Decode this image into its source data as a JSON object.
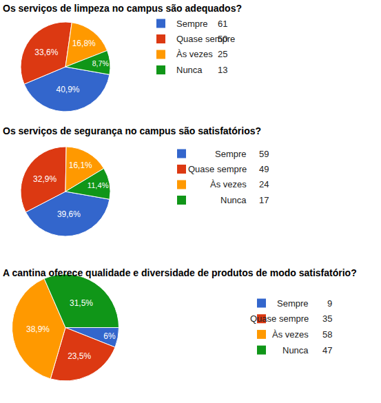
{
  "chart_data": [
    {
      "type": "pie",
      "title": "Os serviços de limpeza no campus são adequados?",
      "categories": [
        "Sempre",
        "Quase sempre",
        "Às vezes",
        "Nunca"
      ],
      "values": [
        40.9,
        33.6,
        16.8,
        8.7
      ],
      "value_labels": [
        "40,9%",
        "33,6%",
        "16,8%",
        "8,7%"
      ],
      "counts": [
        61,
        50,
        25,
        13
      ],
      "colors": [
        "#3366cc",
        "#dc3912",
        "#ff9900",
        "#109618"
      ],
      "data_labels": true
    },
    {
      "type": "pie",
      "title": "Os serviços de segurança no campus são satisfatórios?",
      "categories": [
        "Sempre",
        "Quase sempre",
        "Às vezes",
        "Nunca"
      ],
      "values": [
        39.6,
        32.9,
        16.1,
        11.4
      ],
      "value_labels": [
        "39,6%",
        "32,9%",
        "16,1%",
        "11,4%"
      ],
      "counts": [
        59,
        49,
        24,
        17
      ],
      "colors": [
        "#3366cc",
        "#dc3912",
        "#ff9900",
        "#109618"
      ],
      "data_labels": true
    },
    {
      "type": "pie",
      "title": "A cantina oferece qualidade e diversidade de produtos de modo satisfatório?",
      "categories": [
        "Sempre",
        "Quase sempre",
        "Às vezes",
        "Nunca"
      ],
      "values": [
        6,
        23.5,
        38.9,
        31.5
      ],
      "value_labels": [
        "6%",
        "23,5%",
        "38,9%",
        "31,5%"
      ],
      "counts": [
        9,
        35,
        58,
        47
      ],
      "colors": [
        "#3366cc",
        "#dc3912",
        "#ff9900",
        "#109618"
      ],
      "data_labels": true
    }
  ]
}
